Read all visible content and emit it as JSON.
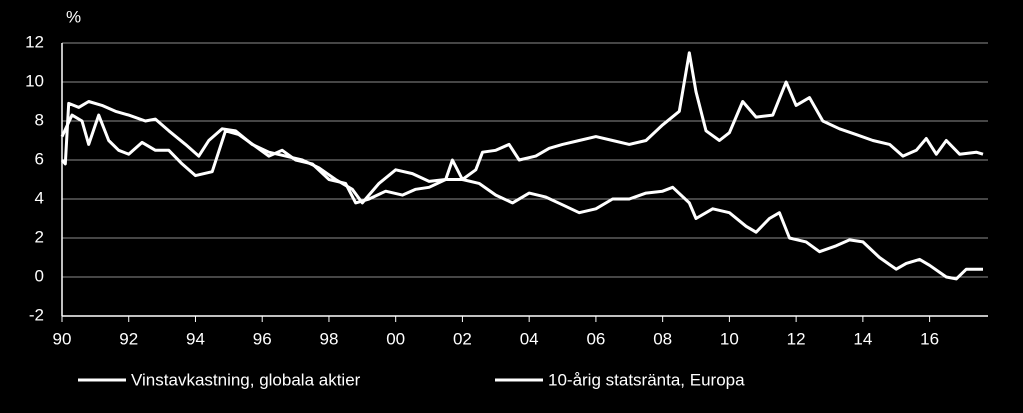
{
  "chart_data": {
    "type": "line",
    "y_label": "%",
    "xlim": [
      1990,
      2017.75
    ],
    "ylim": [
      -2,
      12
    ],
    "yticks": [
      -2,
      0,
      2,
      4,
      6,
      8,
      10,
      12
    ],
    "xticks": [
      {
        "value": 1990,
        "label": "90"
      },
      {
        "value": 1992,
        "label": "92"
      },
      {
        "value": 1994,
        "label": "94"
      },
      {
        "value": 1996,
        "label": "96"
      },
      {
        "value": 1998,
        "label": "98"
      },
      {
        "value": 2000,
        "label": "00"
      },
      {
        "value": 2002,
        "label": "02"
      },
      {
        "value": 2004,
        "label": "04"
      },
      {
        "value": 2006,
        "label": "06"
      },
      {
        "value": 2008,
        "label": "08"
      },
      {
        "value": 2010,
        "label": "10"
      },
      {
        "value": 2012,
        "label": "12"
      },
      {
        "value": 2014,
        "label": "14"
      },
      {
        "value": 2016,
        "label": "16"
      }
    ],
    "grid": true,
    "series": [
      {
        "name": "Vinstavkastning, globala aktier",
        "color": "#ffffff",
        "x": [
          1990.0,
          1990.3,
          1990.6,
          1990.8,
          1991.1,
          1991.4,
          1991.7,
          1992.0,
          1992.4,
          1992.8,
          1993.2,
          1993.6,
          1994.0,
          1994.5,
          1994.9,
          1995.3,
          1995.8,
          1996.2,
          1996.6,
          1997.0,
          1997.5,
          1998.0,
          1998.5,
          1998.8,
          1999.2,
          1999.7,
          2000.2,
          2000.6,
          2001.0,
          2001.5,
          2001.7,
          2002.0,
          2002.4,
          2002.6,
          2003.0,
          2003.4,
          2003.7,
          2004.2,
          2004.6,
          2005.0,
          2005.5,
          2006.0,
          2006.5,
          2007.0,
          2007.5,
          2008.0,
          2008.5,
          2008.8,
          2009.0,
          2009.3,
          2009.7,
          2010.0,
          2010.4,
          2010.8,
          2011.3,
          2011.7,
          2012.0,
          2012.4,
          2012.8,
          2013.3,
          2013.8,
          2014.3,
          2014.8,
          2015.2,
          2015.6,
          2015.9,
          2016.2,
          2016.5,
          2016.9,
          2017.4,
          2017.6
        ],
        "values": [
          7.2,
          8.3,
          8.0,
          6.8,
          8.3,
          7.0,
          6.5,
          6.3,
          6.9,
          6.5,
          6.5,
          5.8,
          5.2,
          5.4,
          7.5,
          7.3,
          6.7,
          6.2,
          6.5,
          6.0,
          5.8,
          5.0,
          4.8,
          3.8,
          4.0,
          4.4,
          4.2,
          4.5,
          4.6,
          5.0,
          6.0,
          5.0,
          5.5,
          6.4,
          6.5,
          6.8,
          6.0,
          6.2,
          6.6,
          6.8,
          7.0,
          7.2,
          7.0,
          6.8,
          7.0,
          7.8,
          8.5,
          11.5,
          9.5,
          7.5,
          7.0,
          7.4,
          9.0,
          8.2,
          8.3,
          10.0,
          8.8,
          9.2,
          8.0,
          7.6,
          7.3,
          7.0,
          6.8,
          6.2,
          6.5,
          7.1,
          6.3,
          7.0,
          6.3,
          6.4,
          6.3
        ]
      },
      {
        "name": "10-årig statsränta, Europa",
        "color": "#ffffff",
        "x": [
          1990.0,
          1990.1,
          1990.2,
          1990.5,
          1990.8,
          1991.2,
          1991.6,
          1992.0,
          1992.5,
          1992.8,
          1993.2,
          1993.7,
          1994.1,
          1994.4,
          1994.8,
          1995.2,
          1995.7,
          1996.2,
          1996.7,
          1997.2,
          1997.7,
          1998.2,
          1998.7,
          1999.0,
          1999.5,
          2000.0,
          2000.5,
          2001.0,
          2001.5,
          2002.0,
          2002.5,
          2003.0,
          2003.5,
          2004.0,
          2004.5,
          2005.0,
          2005.5,
          2006.0,
          2006.5,
          2007.0,
          2007.5,
          2008.0,
          2008.3,
          2008.8,
          2009.0,
          2009.5,
          2010.0,
          2010.5,
          2010.8,
          2011.2,
          2011.5,
          2011.8,
          2012.3,
          2012.7,
          2013.2,
          2013.6,
          2014.0,
          2014.5,
          2015.0,
          2015.3,
          2015.7,
          2016.0,
          2016.5,
          2016.8,
          2017.1,
          2017.4,
          2017.6
        ],
        "values": [
          6.0,
          5.8,
          8.9,
          8.7,
          9.0,
          8.8,
          8.5,
          8.3,
          8.0,
          8.1,
          7.5,
          6.8,
          6.2,
          7.0,
          7.6,
          7.5,
          6.8,
          6.4,
          6.2,
          6.0,
          5.6,
          5.0,
          4.5,
          3.8,
          4.8,
          5.5,
          5.3,
          4.9,
          5.0,
          5.0,
          4.8,
          4.2,
          3.8,
          4.3,
          4.1,
          3.7,
          3.3,
          3.5,
          4.0,
          4.0,
          4.3,
          4.4,
          4.6,
          3.8,
          3.0,
          3.5,
          3.3,
          2.6,
          2.3,
          3.0,
          3.3,
          2.0,
          1.8,
          1.3,
          1.6,
          1.9,
          1.8,
          1.0,
          0.4,
          0.7,
          0.9,
          0.6,
          0.0,
          -0.1,
          0.4,
          0.4,
          0.4
        ]
      }
    ]
  }
}
